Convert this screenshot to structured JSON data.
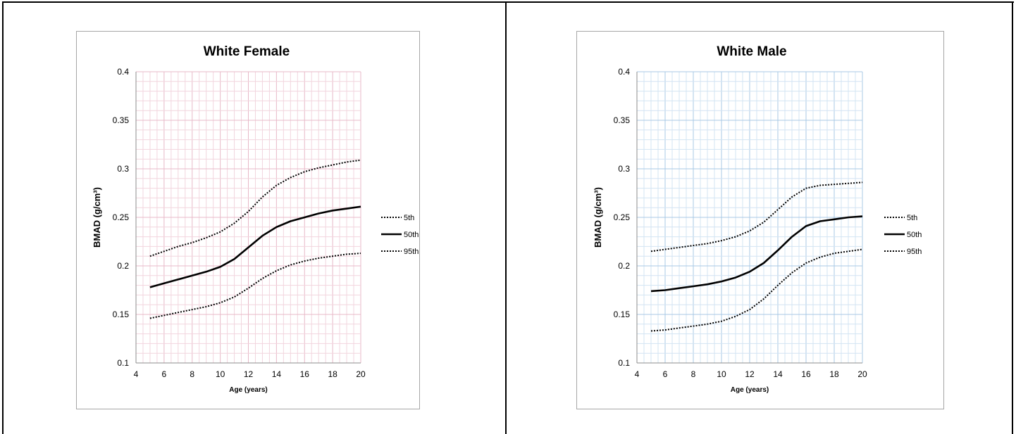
{
  "colors": {
    "page_border": "#000000",
    "chart_border": "#a6a6a6",
    "female_grid_minor": "#f2d5de",
    "female_grid_major": "#e8b9c8",
    "male_grid_minor": "#d3e4f3",
    "male_grid_major": "#a9c9e6",
    "line": "#000000"
  },
  "chart_data": [
    {
      "type": "line",
      "title": "White Female",
      "xlabel": "Age (years)",
      "ylabel": "BMAD (g/cm³)",
      "xlim": [
        4,
        20
      ],
      "ylim": [
        0.1,
        0.4
      ],
      "x_ticks": [
        "4",
        "6",
        "8",
        "10",
        "12",
        "14",
        "16",
        "18",
        "20"
      ],
      "y_ticks": [
        "0.1",
        "0.15",
        "0.2",
        "0.25",
        "0.3",
        "0.35",
        "0.4"
      ],
      "grid": true,
      "legend_position": "right",
      "series": [
        {
          "name": "5th",
          "style": "dotted",
          "x": [
            5,
            6,
            7,
            8,
            9,
            10,
            11,
            12,
            13,
            14,
            15,
            16,
            17,
            18,
            19,
            20
          ],
          "values": [
            0.146,
            0.149,
            0.152,
            0.155,
            0.158,
            0.162,
            0.168,
            0.177,
            0.187,
            0.195,
            0.201,
            0.205,
            0.208,
            0.21,
            0.212,
            0.213
          ]
        },
        {
          "name": "50th",
          "style": "solid",
          "x": [
            5,
            6,
            7,
            8,
            9,
            10,
            11,
            12,
            13,
            14,
            15,
            16,
            17,
            18,
            19,
            20
          ],
          "values": [
            0.178,
            0.182,
            0.186,
            0.19,
            0.194,
            0.199,
            0.207,
            0.219,
            0.231,
            0.24,
            0.246,
            0.25,
            0.254,
            0.257,
            0.259,
            0.261
          ]
        },
        {
          "name": "95th",
          "style": "dotted",
          "x": [
            5,
            6,
            7,
            8,
            9,
            10,
            11,
            12,
            13,
            14,
            15,
            16,
            17,
            18,
            19,
            20
          ],
          "values": [
            0.21,
            0.215,
            0.22,
            0.224,
            0.229,
            0.235,
            0.244,
            0.256,
            0.271,
            0.283,
            0.291,
            0.297,
            0.301,
            0.304,
            0.307,
            0.309
          ]
        }
      ]
    },
    {
      "type": "line",
      "title": "White Male",
      "xlabel": "Age (years)",
      "ylabel": "BMAD (g/cm³)",
      "xlim": [
        4,
        20
      ],
      "ylim": [
        0.1,
        0.4
      ],
      "x_ticks": [
        "4",
        "6",
        "8",
        "10",
        "12",
        "14",
        "16",
        "18",
        "20"
      ],
      "y_ticks": [
        "0.1",
        "0.15",
        "0.2",
        "0.25",
        "0.3",
        "0.35",
        "0.4"
      ],
      "grid": true,
      "legend_position": "right",
      "series": [
        {
          "name": "5th",
          "style": "dotted",
          "x": [
            5,
            6,
            7,
            8,
            9,
            10,
            11,
            12,
            13,
            14,
            15,
            16,
            17,
            18,
            19,
            20
          ],
          "values": [
            0.133,
            0.134,
            0.136,
            0.138,
            0.14,
            0.143,
            0.148,
            0.155,
            0.166,
            0.18,
            0.193,
            0.203,
            0.209,
            0.213,
            0.215,
            0.217
          ]
        },
        {
          "name": "50th",
          "style": "solid",
          "x": [
            5,
            6,
            7,
            8,
            9,
            10,
            11,
            12,
            13,
            14,
            15,
            16,
            17,
            18,
            19,
            20
          ],
          "values": [
            0.174,
            0.175,
            0.177,
            0.179,
            0.181,
            0.184,
            0.188,
            0.194,
            0.203,
            0.216,
            0.23,
            0.241,
            0.246,
            0.248,
            0.25,
            0.251
          ]
        },
        {
          "name": "95th",
          "style": "dotted",
          "x": [
            5,
            6,
            7,
            8,
            9,
            10,
            11,
            12,
            13,
            14,
            15,
            16,
            17,
            18,
            19,
            20
          ],
          "values": [
            0.215,
            0.217,
            0.219,
            0.221,
            0.223,
            0.226,
            0.23,
            0.236,
            0.245,
            0.258,
            0.271,
            0.28,
            0.283,
            0.284,
            0.285,
            0.286
          ]
        }
      ]
    }
  ]
}
